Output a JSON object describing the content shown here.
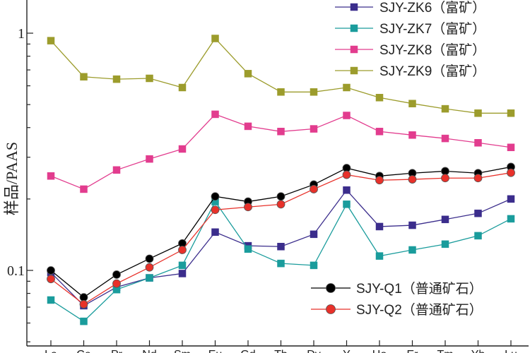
{
  "chart_data": {
    "type": "line",
    "title": "",
    "xlabel": "",
    "ylabel": "样品/PAAS",
    "yscale": "log",
    "ylim": [
      0.05,
      1.2
    ],
    "yticks": [
      {
        "value": 0.1,
        "label": "0.1"
      },
      {
        "value": 1,
        "label": "1"
      }
    ],
    "categories": [
      "La",
      "Ce",
      "Pr",
      "Nd",
      "Sm",
      "Eu",
      "Gd",
      "Tb",
      "Dy",
      "Y",
      "Ho",
      "Er",
      "Tm",
      "Yb",
      "Lu"
    ],
    "legend_top": "top-right",
    "legend_bottom": "bottom-right",
    "series": [
      {
        "name": "SJY-ZK6（富矿）",
        "color": "#3b2d8c",
        "marker": "square",
        "legend": "top",
        "values": [
          0.098,
          0.071,
          0.085,
          0.093,
          0.097,
          0.145,
          0.127,
          0.126,
          0.142,
          0.218,
          0.153,
          0.155,
          0.164,
          0.174,
          0.2
        ]
      },
      {
        "name": "SJY-ZK7（富矿）",
        "color": "#1a9c9c",
        "marker": "square",
        "legend": "top",
        "values": [
          0.075,
          0.061,
          0.083,
          0.093,
          0.105,
          0.195,
          0.123,
          0.107,
          0.105,
          0.19,
          0.115,
          0.122,
          0.129,
          0.14,
          0.165
        ]
      },
      {
        "name": "SJY-ZK8（富矿）",
        "color": "#e23c8e",
        "marker": "square",
        "legend": "top",
        "values": [
          0.25,
          0.22,
          0.265,
          0.295,
          0.325,
          0.455,
          0.405,
          0.385,
          0.395,
          0.45,
          0.385,
          0.372,
          0.36,
          0.345,
          0.33
        ]
      },
      {
        "name": "SJY-ZK9（富矿）",
        "color": "#9c9c2c",
        "marker": "square",
        "legend": "top",
        "values": [
          0.93,
          0.655,
          0.64,
          0.645,
          0.59,
          0.95,
          0.675,
          0.565,
          0.565,
          0.59,
          0.535,
          0.505,
          0.48,
          0.46,
          0.46
        ]
      },
      {
        "name": "SJY-Q1（普通矿石）",
        "color": "#000000",
        "marker": "circle",
        "legend": "bottom",
        "values": [
          0.1,
          0.077,
          0.096,
          0.112,
          0.13,
          0.205,
          0.195,
          0.205,
          0.23,
          0.27,
          0.25,
          0.257,
          0.262,
          0.257,
          0.273
        ]
      },
      {
        "name": "SJY-Q2（普通矿石）",
        "color": "#e8312a",
        "marker": "circle",
        "legend": "bottom",
        "values": [
          0.092,
          0.072,
          0.088,
          0.103,
          0.122,
          0.18,
          0.185,
          0.19,
          0.22,
          0.253,
          0.24,
          0.242,
          0.245,
          0.245,
          0.258
        ]
      }
    ]
  }
}
